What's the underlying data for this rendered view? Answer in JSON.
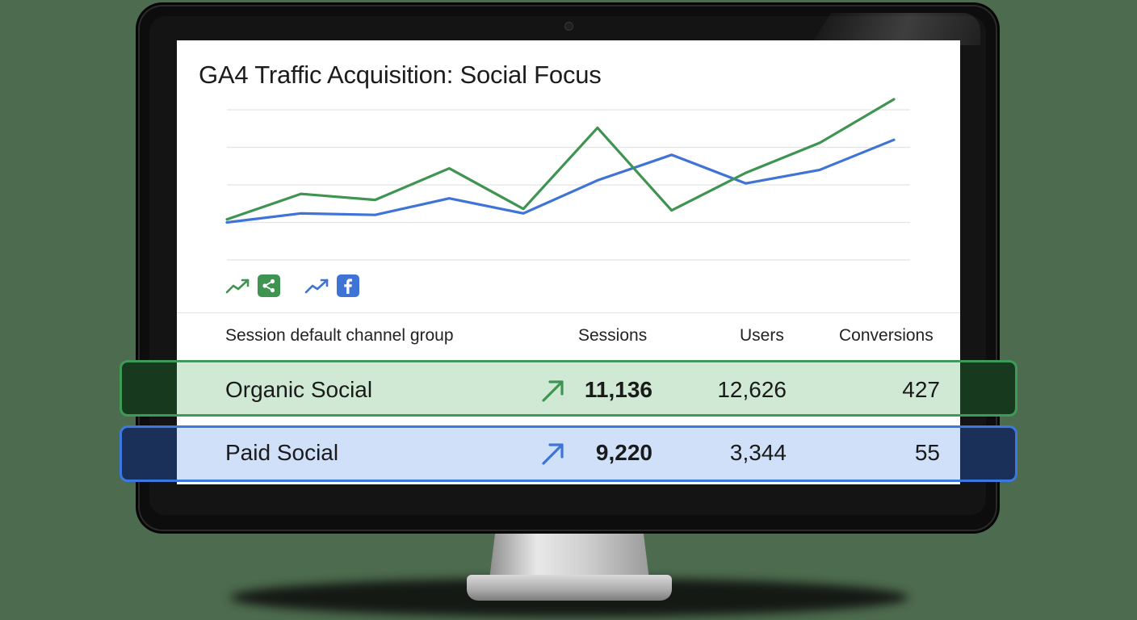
{
  "window": {
    "title": "GA4 Traffic Acquisition: Social Focus"
  },
  "colors": {
    "organic": "#3f9452",
    "paid": "#3f74d6"
  },
  "legend": {
    "items": [
      {
        "series": "Organic Social",
        "icon": "share-icon",
        "trend_icon": "trend-up-icon"
      },
      {
        "series": "Paid Social",
        "icon": "facebook-icon",
        "trend_icon": "trend-up-icon"
      }
    ]
  },
  "table": {
    "headers": {
      "channel": "Session default channel group",
      "sessions": "Sessions",
      "users": "Users",
      "conversions": "Conversions"
    },
    "rows": [
      {
        "channel": "Organic Social",
        "sessions": "11,136",
        "users": "12,626",
        "conversions": "427",
        "trend_icon": "arrow-up-right-icon"
      },
      {
        "channel": "Paid Social",
        "sessions": "9,220",
        "users": "3,344",
        "conversions": "55",
        "trend_icon": "arrow-up-right-icon"
      }
    ]
  },
  "chart_data": {
    "type": "line",
    "title": "",
    "grid": true,
    "x": [
      1,
      2,
      3,
      4,
      5,
      6,
      7,
      8,
      9,
      10
    ],
    "ylim": [
      0,
      100
    ],
    "series": [
      {
        "name": "Organic Social",
        "values": [
          27,
          44,
          40,
          61,
          34,
          88,
          33,
          58,
          78,
          107
        ]
      },
      {
        "name": "Paid Social",
        "values": [
          25,
          31,
          30,
          41,
          31,
          53,
          70,
          51,
          60,
          80
        ]
      }
    ]
  }
}
